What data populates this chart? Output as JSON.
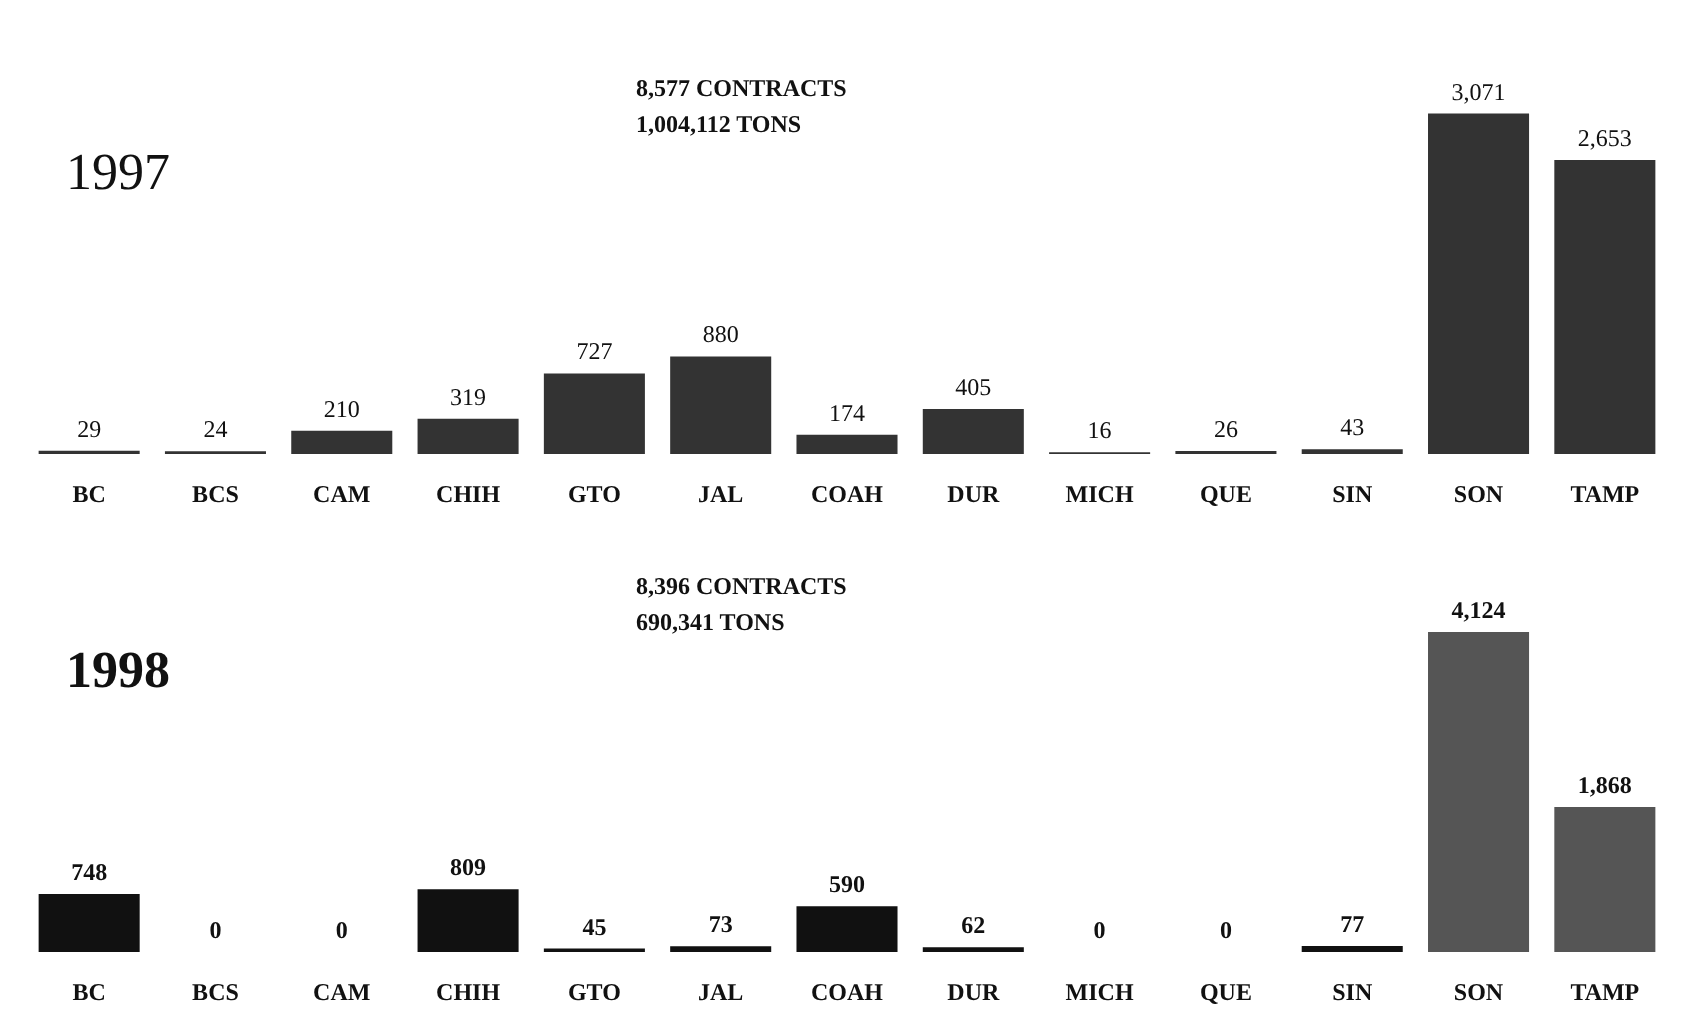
{
  "chart_data": [
    {
      "type": "bar",
      "title": "1997",
      "annotations": [
        "8,577 CONTRACTS",
        "1,004,112 TONS"
      ],
      "categories": [
        "BC",
        "BCS",
        "CAM",
        "CHIH",
        "GTO",
        "JAL",
        "COAH",
        "DUR",
        "MICH",
        "QUE",
        "SIN",
        "SON",
        "TAMP"
      ],
      "values": [
        29,
        24,
        210,
        319,
        727,
        880,
        174,
        405,
        16,
        26,
        43,
        3071,
        2653
      ],
      "value_labels": [
        "29",
        "24",
        "210",
        "319",
        "727",
        "880",
        "174",
        "405",
        "16",
        "26",
        "43",
        "3,071",
        "2,653"
      ],
      "color": "#333333"
    },
    {
      "type": "bar",
      "title": "1998",
      "annotations": [
        "8,396 CONTRACTS",
        "690,341 TONS"
      ],
      "categories": [
        "BC",
        "BCS",
        "CAM",
        "CHIH",
        "GTO",
        "JAL",
        "COAH",
        "DUR",
        "MICH",
        "QUE",
        "SIN",
        "SON",
        "TAMP"
      ],
      "values": [
        748,
        0,
        0,
        809,
        45,
        73,
        590,
        62,
        0,
        0,
        77,
        4124,
        1868
      ],
      "value_labels": [
        "748",
        "0",
        "0",
        "809",
        "45",
        "73",
        "590",
        "62",
        "0",
        "0",
        "77",
        "4,124",
        "1,868"
      ],
      "colors": [
        "#111111",
        "#111111",
        "#111111",
        "#111111",
        "#111111",
        "#111111",
        "#111111",
        "#111111",
        "#111111",
        "#111111",
        "#111111",
        "#555555",
        "#555555"
      ]
    }
  ]
}
